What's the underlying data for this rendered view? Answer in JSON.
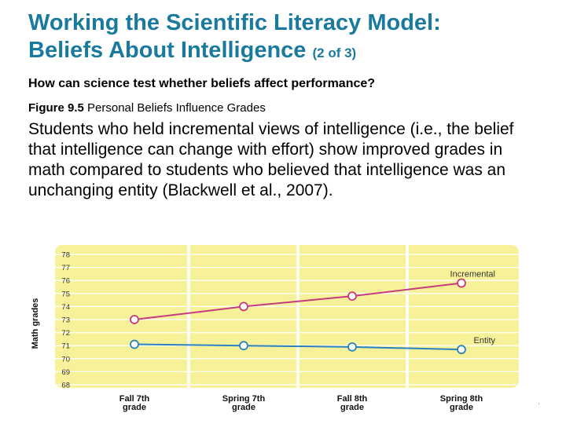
{
  "slide": {
    "title_line1": "Working the Scientific Literacy Model:",
    "title_line2": "Beliefs About Intelligence",
    "title_part": "(2 of 3)",
    "question": "How can science test whether beliefs affect performance?",
    "figure_label": "Figure 9.5",
    "figure_title": "Personal Beliefs Influence Grades",
    "body": "Students who held incremental views of intelligence (i.e., the belief that intelligence can change with effort) show improved grades in math compared to students who believed that intelligence was an unchanging entity (Blackwell et al., 2007).",
    "edge_mark": "ˈ"
  },
  "colors": {
    "title": "#1a7a9e",
    "plot_background": "#f7f29a",
    "incremental": "#c83a7e",
    "entity": "#2a82bf"
  },
  "chart_data": {
    "type": "line",
    "title": "",
    "xlabel": "",
    "ylabel": "Math grades",
    "categories": [
      [
        "Fall 7th",
        "grade"
      ],
      [
        "Spring 7th",
        "grade"
      ],
      [
        "Fall 8th",
        "grade"
      ],
      [
        "Spring 8th",
        "grade"
      ]
    ],
    "ylim": [
      68,
      78
    ],
    "yticks": [
      68,
      69,
      70,
      71,
      72,
      73,
      74,
      75,
      76,
      77,
      78
    ],
    "grid": true,
    "series": [
      {
        "name": "Incremental",
        "values": [
          73.0,
          74.0,
          74.8,
          75.8
        ],
        "color": "#c83a7e"
      },
      {
        "name": "Entity",
        "values": [
          71.1,
          71.0,
          70.9,
          70.7
        ],
        "color": "#2a82bf"
      }
    ]
  }
}
